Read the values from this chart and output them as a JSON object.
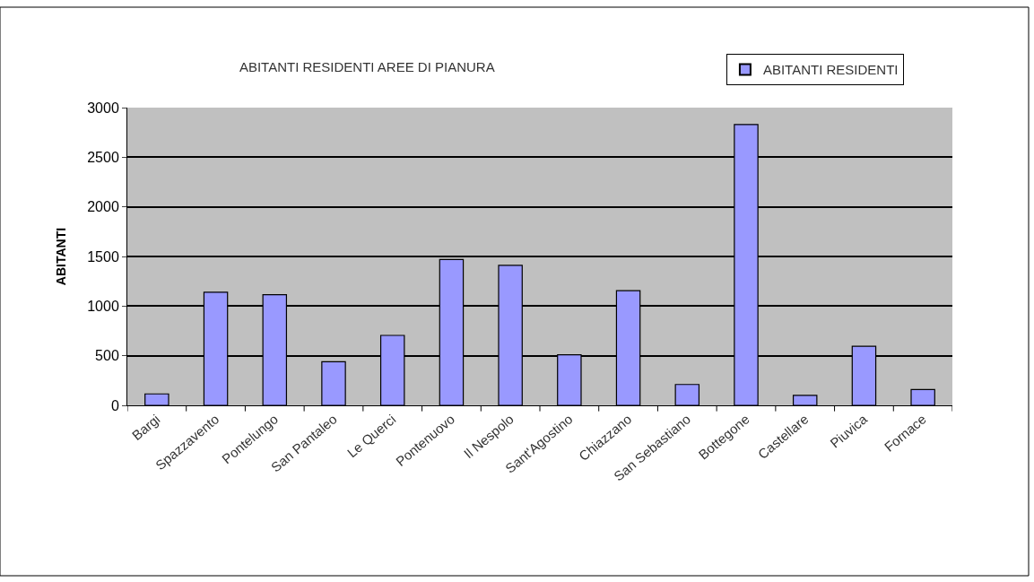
{
  "chart_data": {
    "type": "bar",
    "title": "ABITANTI RESIDENTI AREE DI PIANURA",
    "ylabel": "ABITANTI",
    "categories": [
      "Bargi",
      "Spazzavento",
      "Pontelungo",
      "San Pantaleo",
      "Le Querci",
      "Pontenuovo",
      "Il Nespolo",
      "Sant'Agostino",
      "Chiazzano",
      "San Sebastiano",
      "Bottegone",
      "Castellare",
      "Piuvica",
      "Fornace"
    ],
    "series": [
      {
        "name": "ABITANTI RESIDENTI",
        "color": "#9999ff",
        "values": [
          115,
          1140,
          1115,
          440,
          705,
          1470,
          1410,
          510,
          1155,
          210,
          2830,
          100,
          595,
          160
        ]
      }
    ],
    "ylim": [
      0,
      3000
    ],
    "yticks": [
      0,
      500,
      1000,
      1500,
      2000,
      2500,
      3000
    ],
    "grid": "y",
    "legend": "top right"
  }
}
